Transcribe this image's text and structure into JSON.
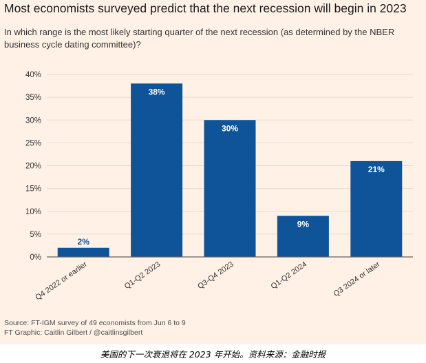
{
  "header": {
    "title": "Most economists surveyed predict that the next recession will begin in 2023",
    "subtitle": "In which range is the most likely starting quarter of the next recession (as determined by the NBER business cycle dating committee)?"
  },
  "footer": {
    "source": "Source: FT-IGM survey of 49 economists from Jun 6 to 9",
    "graphic": "FT Graphic: Caitlin Gilbert / @caitlinsgilbert"
  },
  "caption": "美国的下一次衰退将在 2023 年开始。资料来源：金融时报",
  "colors": {
    "bar": "#0f5499",
    "background": "#fff1e5",
    "grid": "#e6d9ce",
    "axis": "#66605c"
  },
  "chart_data": {
    "type": "bar",
    "categories": [
      "Q4 2022 or earlier",
      "Q1-Q2 2023",
      "Q3-Q4 2023",
      "Q1-Q2 2024",
      "Q3 2024 or later"
    ],
    "values": [
      2,
      38,
      30,
      9,
      21
    ],
    "data_labels": [
      "2%",
      "38%",
      "30%",
      "9%",
      "21%"
    ],
    "yticks": [
      0,
      5,
      10,
      15,
      20,
      25,
      30,
      35,
      40
    ],
    "ytick_labels": [
      "0%",
      "5%",
      "10%",
      "15%",
      "20%",
      "25%",
      "30%",
      "35%",
      "40%"
    ],
    "ylim": [
      0,
      40
    ],
    "grid": true,
    "title": "Most economists surveyed predict that the next recession will begin in 2023",
    "xlabel": "",
    "ylabel": ""
  }
}
